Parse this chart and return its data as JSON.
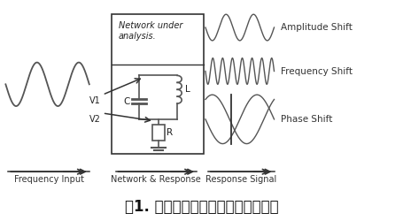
{
  "title": "图1. 具有复数阻抗特性的传感器模型",
  "title_fontsize": 12,
  "line_color": "#555555",
  "dark_color": "#333333",
  "label_freq_input": "Frequency Input",
  "label_network": "Network & Response",
  "label_response": "Response Signal",
  "label_amplitude": "Amplitude Shift",
  "label_frequency": "Frequency Shift",
  "label_phase": "Phase Shift",
  "label_network_box": "Network under\nanalysis.",
  "label_V1": "V1",
  "label_V2": "V2",
  "label_C": "C",
  "label_L": "L",
  "label_R": "R",
  "figw": 4.56,
  "figh": 2.5,
  "dpi": 100
}
